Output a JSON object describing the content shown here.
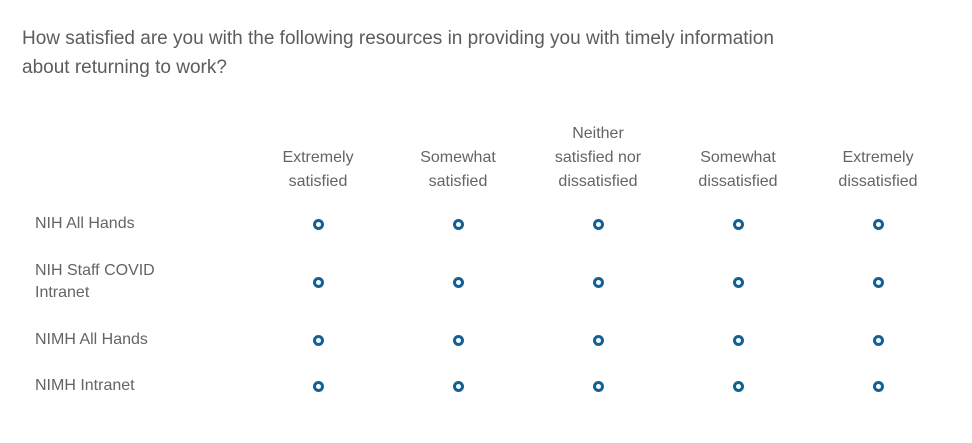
{
  "question": {
    "text": "How satisfied are you with the following resources in providing you with timely information\nabout returning to work?"
  },
  "matrix": {
    "columns": [
      {
        "label": "Extremely\nsatisfied"
      },
      {
        "label": "Somewhat\nsatisfied"
      },
      {
        "label": "Neither\nsatisfied nor\ndissatisfied"
      },
      {
        "label": "Somewhat\ndissatisfied"
      },
      {
        "label": "Extremely\ndissatisfied"
      }
    ],
    "rows": [
      {
        "label": "NIH All Hands"
      },
      {
        "label": "NIH Staff COVID\nIntranet"
      },
      {
        "label": "NIMH All Hands"
      },
      {
        "label": "NIMH Intranet"
      }
    ],
    "radio_state": "unselected",
    "colors": {
      "radio_ring": "#106296",
      "question_text": "#5b5c60",
      "label_text": "#636468"
    }
  }
}
